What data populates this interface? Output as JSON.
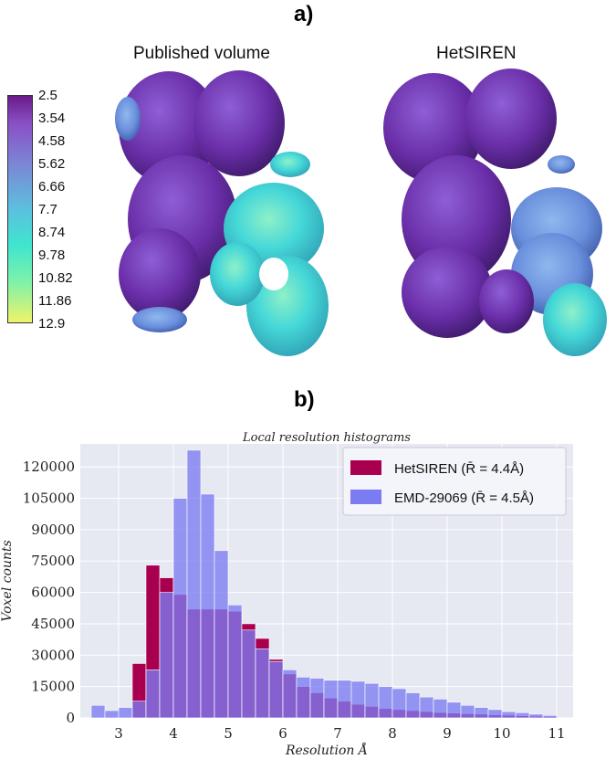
{
  "panel_a": {
    "label": "a)",
    "left_title": "Published volume",
    "right_title": "HetSIREN",
    "colorbar_ticks": [
      "2.5",
      "3.54",
      "4.58",
      "5.62",
      "6.66",
      "7.7",
      "8.74",
      "9.78",
      "10.82",
      "11.86",
      "12.9"
    ]
  },
  "panel_b": {
    "label": "b)"
  },
  "colors": {
    "hetsiren": "#a8004f",
    "emd": "#7b7bf2",
    "overlap": "#7a3fc9",
    "plot_bg": "#e6e8f2"
  },
  "chart_data": {
    "type": "bar",
    "title": "Local resolution histograms",
    "xlabel": "Resolution Å",
    "ylabel": "Voxel counts",
    "xlim": [
      2.3,
      11.3
    ],
    "ylim": [
      0,
      131000
    ],
    "xticks": [
      3,
      4,
      5,
      6,
      7,
      8,
      9,
      10,
      11
    ],
    "yticks": [
      0,
      15000,
      30000,
      45000,
      60000,
      75000,
      90000,
      105000,
      120000
    ],
    "grid": true,
    "legend_position": "top-right",
    "bin_edges": [
      2.5,
      2.75,
      3.0,
      3.25,
      3.5,
      3.75,
      4.0,
      4.25,
      4.5,
      4.75,
      5.0,
      5.25,
      5.5,
      5.75,
      6.0,
      6.25,
      6.5,
      6.75,
      7.0,
      7.25,
      7.5,
      7.75,
      8.0,
      8.25,
      8.5,
      8.75,
      9.0,
      9.25,
      9.5,
      9.75,
      10.0,
      10.25,
      10.5,
      10.75,
      11.0
    ],
    "series": [
      {
        "name": "HetSIREN",
        "legend_label": "HetSIREN (R̄ = 4.4Å)",
        "values": [
          0,
          0,
          0,
          26000,
          73000,
          67000,
          59000,
          52000,
          52000,
          52000,
          51000,
          45000,
          38000,
          28000,
          21000,
          15000,
          12000,
          9500,
          8000,
          6500,
          5500,
          4500,
          4000,
          3500,
          3000,
          2600,
          2300,
          2000,
          1800,
          1500,
          1300,
          1000,
          800,
          600,
          3000
        ]
      },
      {
        "name": "EMD-29069",
        "legend_label": "EMD-29069 (R̄ = 4.5Å)",
        "values": [
          6000,
          3500,
          5000,
          8000,
          23000,
          60000,
          105000,
          128000,
          107000,
          80000,
          54000,
          42000,
          33000,
          27000,
          23000,
          19500,
          19000,
          18000,
          18000,
          17500,
          16500,
          15000,
          14000,
          12000,
          10000,
          9000,
          7500,
          6000,
          5000,
          4000,
          3000,
          2500,
          1800,
          1200,
          800
        ]
      }
    ]
  }
}
